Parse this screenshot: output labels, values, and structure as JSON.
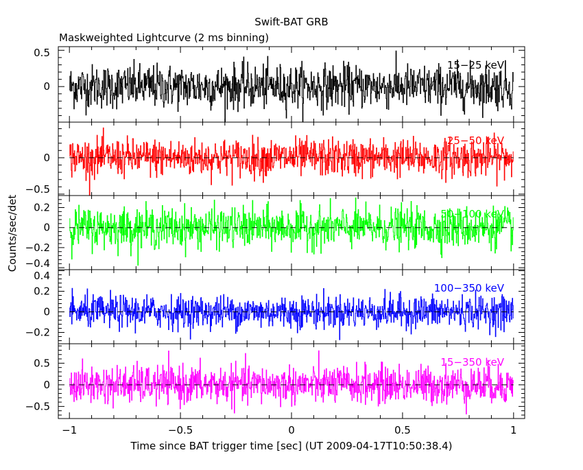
{
  "chart_data": {
    "type": "line",
    "title": "Swift-BAT GRB",
    "subtitle": "Maskweighted Lightcurve (2 ms binning)",
    "xlabel": "Time since BAT trigger time [sec] (UT 2009-04-17T10:50:38.4)",
    "ylabel": "Counts/sec/det",
    "xlim": [
      -1.05,
      1.05
    ],
    "x_data_range": [
      -1,
      1
    ],
    "bin_width_sec": 0.002,
    "xticks": [
      -1,
      -0.5,
      0,
      0.5,
      1
    ],
    "xtick_labels": [
      "−1",
      "−0.5",
      "0",
      "0.5",
      "1"
    ],
    "series": [
      {
        "name": "15−25 keV",
        "color": "#000000",
        "ylim": [
          -0.49,
          0.55
        ],
        "yticks": [
          0,
          0.5
        ],
        "ytick_labels": [
          "0",
          "0.5"
        ],
        "noise_sigma": 0.15,
        "zero_line": false
      },
      {
        "name": "25−50 keV",
        "color": "#ff0000",
        "ylim": [
          -0.52,
          0.49
        ],
        "yticks": [
          -0.5,
          0
        ],
        "ytick_labels": [
          "−0.5",
          "0"
        ],
        "noise_sigma": 0.13,
        "zero_line": true
      },
      {
        "name": "50−100 keV",
        "color": "#00ff00",
        "ylim": [
          -0.42,
          0.32
        ],
        "yticks": [
          -0.4,
          -0.2,
          0,
          0.2
        ],
        "ytick_labels": [
          "−0.4",
          "−0.2",
          "0",
          "0.2"
        ],
        "noise_sigma": 0.1,
        "zero_line": true
      },
      {
        "name": "100−350 keV",
        "color": "#0000ff",
        "ylim": [
          -0.31,
          0.41
        ],
        "yticks": [
          -0.2,
          0,
          0.2,
          0.4
        ],
        "ytick_labels": [
          "−0.2",
          "0",
          "0.2",
          "0.4"
        ],
        "noise_sigma": 0.08,
        "zero_line": true
      },
      {
        "name": "15−350 keV",
        "color": "#ff00ff",
        "ylim": [
          -0.78,
          0.95
        ],
        "yticks": [
          -0.5,
          0,
          0.5
        ],
        "ytick_labels": [
          "−0.5",
          "0",
          "0.5"
        ],
        "noise_sigma": 0.22,
        "zero_line": true
      }
    ]
  }
}
